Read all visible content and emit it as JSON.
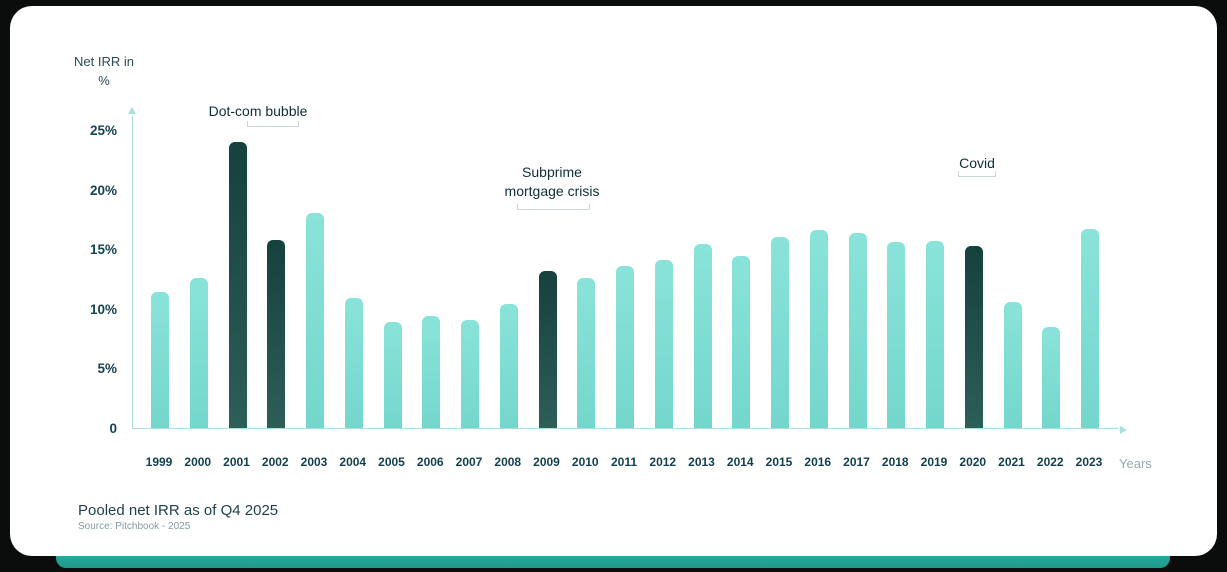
{
  "colors": {
    "bar_light": "#7DDCD2",
    "bar_dark": "#1C4844",
    "axis": "#A9E0DB",
    "text_dark": "#123F4C",
    "text_gray": "#9AA7AC",
    "accent_bottom": "#2BB9A9"
  },
  "chart_data": {
    "type": "bar",
    "title": "Net IRR in %",
    "ylabel": "Net IRR in %",
    "ylabel_lines": [
      "Net IRR in",
      "%"
    ],
    "xlabel": "Years",
    "categories": [
      "1999",
      "2000",
      "2001",
      "2002",
      "2003",
      "2004",
      "2005",
      "2006",
      "2007",
      "2008",
      "2009",
      "2010",
      "2011",
      "2012",
      "2013",
      "2014",
      "2015",
      "2016",
      "2017",
      "2018",
      "2019",
      "2020",
      "2021",
      "2022",
      "2023"
    ],
    "values": [
      11.4,
      12.6,
      24.0,
      15.8,
      18.0,
      10.9,
      8.9,
      9.4,
      9.1,
      10.4,
      13.2,
      12.6,
      13.6,
      14.1,
      15.4,
      14.4,
      16.0,
      16.6,
      16.4,
      15.6,
      15.7,
      15.3,
      10.6,
      8.5,
      16.7
    ],
    "highlight_categories": [
      "2001",
      "2002",
      "2009",
      "2020"
    ],
    "ylim": [
      0,
      25
    ],
    "grid": false,
    "yticks": [
      {
        "label": "25%",
        "value": 25
      },
      {
        "label": "20%",
        "value": 20
      },
      {
        "label": "15%",
        "value": 15
      },
      {
        "label": "10%",
        "value": 10
      },
      {
        "label": "5%",
        "value": 5
      },
      {
        "label": "0",
        "value": 0
      }
    ],
    "annotations": [
      {
        "text": "Dot-com bubble",
        "categories": [
          "2001",
          "2002"
        ]
      },
      {
        "text": "Subprime mortgage crisis",
        "categories": [
          "2009"
        ]
      },
      {
        "text": "Covid",
        "categories": [
          "2020"
        ]
      }
    ]
  },
  "footer": {
    "title": "Pooled net IRR as of Q4 2025",
    "source": "Source: Pitchbook - 2025"
  }
}
